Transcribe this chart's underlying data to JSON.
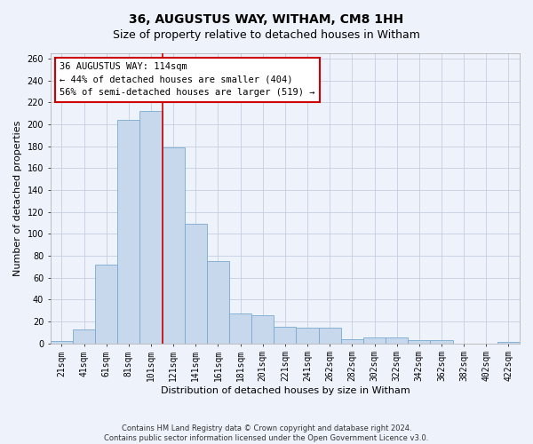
{
  "title": "36, AUGUSTUS WAY, WITHAM, CM8 1HH",
  "subtitle": "Size of property relative to detached houses in Witham",
  "xlabel": "Distribution of detached houses by size in Witham",
  "ylabel": "Number of detached properties",
  "categories": [
    "21sqm",
    "41sqm",
    "61sqm",
    "81sqm",
    "101sqm",
    "121sqm",
    "141sqm",
    "161sqm",
    "181sqm",
    "201sqm",
    "221sqm",
    "241sqm",
    "262sqm",
    "282sqm",
    "302sqm",
    "322sqm",
    "342sqm",
    "362sqm",
    "382sqm",
    "402sqm",
    "422sqm"
  ],
  "values": [
    2,
    13,
    72,
    204,
    212,
    179,
    109,
    75,
    27,
    26,
    15,
    14,
    14,
    4,
    5,
    5,
    3,
    3,
    0,
    0,
    1
  ],
  "bar_color": "#c8d8ec",
  "bar_edge_color": "#7aaace",
  "vline_color": "#cc0000",
  "vline_x": 4.5,
  "annotation_line1": "36 AUGUSTUS WAY: 114sqm",
  "annotation_line2": "← 44% of detached houses are smaller (404)",
  "annotation_line3": "56% of semi-detached houses are larger (519) →",
  "annotation_box_facecolor": "#ffffff",
  "annotation_box_edgecolor": "#cc0000",
  "background_color": "#eef2fb",
  "grid_color": "#c5cde0",
  "title_fontsize": 10,
  "subtitle_fontsize": 9,
  "tick_fontsize": 7,
  "ylabel_fontsize": 8,
  "xlabel_fontsize": 8,
  "annotation_fontsize": 7.5,
  "footer_text": "Contains HM Land Registry data © Crown copyright and database right 2024.\nContains public sector information licensed under the Open Government Licence v3.0.",
  "footer_fontsize": 6,
  "ylim_max": 265,
  "yticks": [
    0,
    20,
    40,
    60,
    80,
    100,
    120,
    140,
    160,
    180,
    200,
    220,
    240,
    260
  ]
}
